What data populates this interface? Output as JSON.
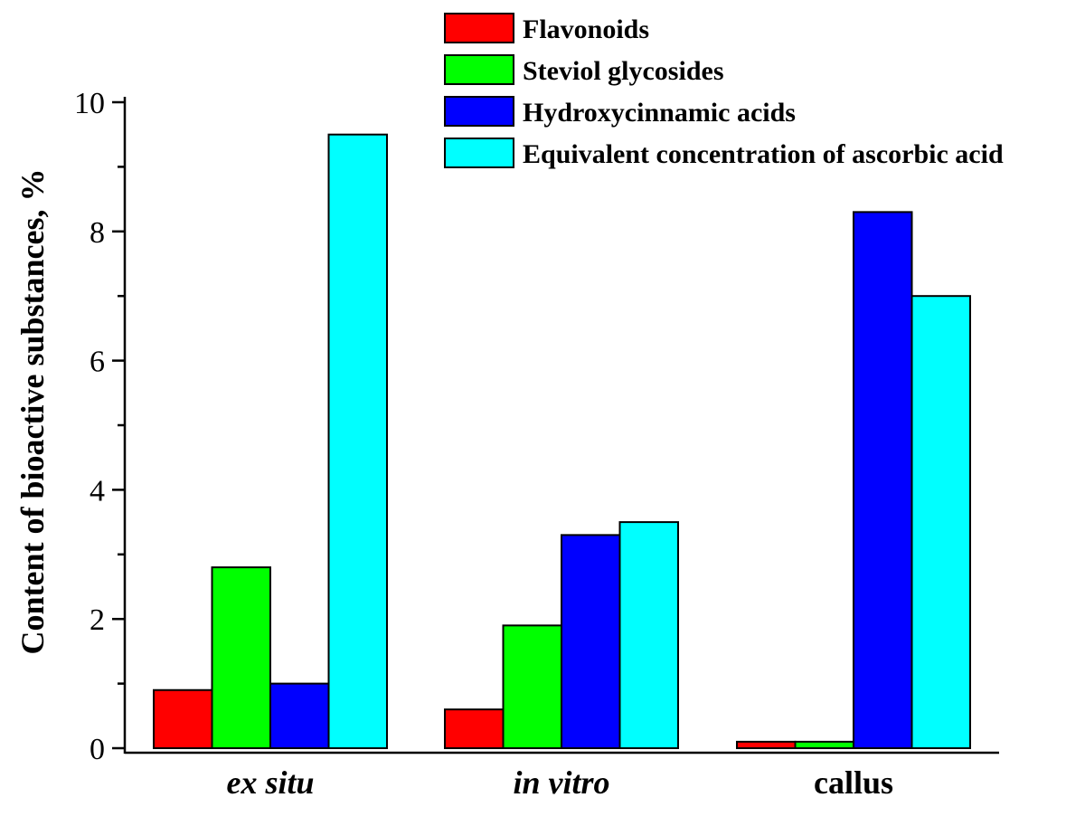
{
  "chart_data": {
    "type": "bar",
    "categories": [
      "ex situ",
      "in vitro",
      "callus"
    ],
    "category_italic": [
      true,
      true,
      false
    ],
    "series": [
      {
        "name": "Flavonoids",
        "color": "#ff0000",
        "values": [
          0.9,
          0.6,
          0.1
        ]
      },
      {
        "name": "Steviol glycosides",
        "color": "#00ff00",
        "values": [
          2.8,
          1.9,
          0.1
        ]
      },
      {
        "name": "Hydroxycinnamic acids",
        "color": "#0000ff",
        "values": [
          1.0,
          3.3,
          8.3
        ]
      },
      {
        "name": "Equivalent concentration of ascorbic acid",
        "color": "#00ffff",
        "values": [
          9.5,
          3.5,
          7.0
        ]
      }
    ],
    "ylabel": "Content of bioactive substances, %",
    "xlabel": "",
    "ylim": [
      0,
      10
    ],
    "yticks": [
      0,
      2,
      4,
      6,
      8,
      10
    ],
    "legend_position": "top-right",
    "grid": false
  }
}
